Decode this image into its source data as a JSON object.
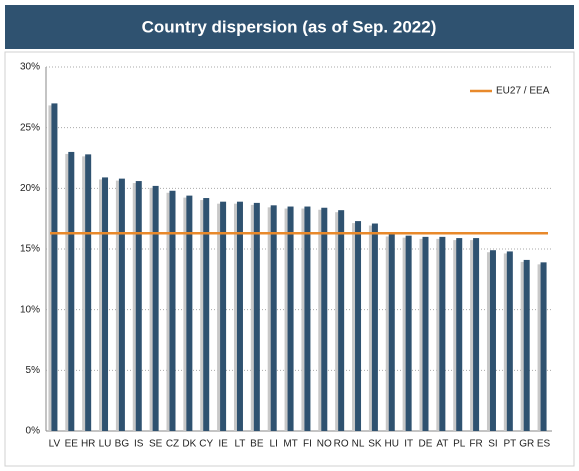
{
  "chart_data": {
    "type": "bar",
    "title": "Country dispersion (as of Sep. 2022)",
    "categories": [
      "LV",
      "EE",
      "HR",
      "LU",
      "BG",
      "IS",
      "SE",
      "CZ",
      "DK",
      "CY",
      "IE",
      "LT",
      "BE",
      "LI",
      "MT",
      "FI",
      "NO",
      "RO",
      "NL",
      "SK",
      "HU",
      "IT",
      "DE",
      "AT",
      "PL",
      "FR",
      "SI",
      "PT",
      "GR",
      "ES"
    ],
    "values": [
      27.0,
      23.0,
      22.8,
      20.9,
      20.8,
      20.6,
      20.2,
      19.8,
      19.4,
      19.2,
      18.9,
      18.9,
      18.8,
      18.6,
      18.5,
      18.5,
      18.4,
      18.2,
      17.3,
      17.1,
      16.2,
      16.1,
      16.0,
      16.0,
      15.9,
      15.9,
      14.9,
      14.8,
      14.1,
      13.9
    ],
    "color": "#2f5270",
    "reference_line": {
      "name": "EU27 / EEA",
      "value": 16.3,
      "color": "#e8892b"
    },
    "ylim": [
      0,
      30
    ],
    "yticks": [
      {
        "value": 0,
        "label": "0%"
      },
      {
        "value": 5,
        "label": "5%"
      },
      {
        "value": 10,
        "label": "10%"
      },
      {
        "value": 15,
        "label": "15%"
      },
      {
        "value": 20,
        "label": "20%"
      },
      {
        "value": 25,
        "label": "25%"
      },
      {
        "value": 30,
        "label": "30%"
      }
    ],
    "grid": true,
    "legend": "top-right"
  }
}
